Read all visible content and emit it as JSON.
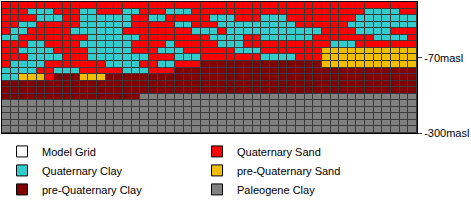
{
  "chart_data": {
    "type": "heatmap",
    "series": [
      {
        "name": "Model Grid",
        "color": "#ffffff"
      },
      {
        "name": "Quaternary Sand",
        "color": "#ff0000"
      },
      {
        "name": "Quaternary Clay",
        "color": "#33cccc"
      },
      {
        "name": "pre-Quaternary Sand",
        "color": "#f0c000"
      },
      {
        "name": "pre-Quaternary Clay",
        "color": "#800000"
      },
      {
        "name": "Paleogene Clay",
        "color": "#808080"
      }
    ],
    "x": [
      0.5,
      1.5,
      2.5,
      3.5,
      4.5,
      5.5,
      6.5,
      7.5,
      8.5,
      9.5,
      10.5,
      11.5,
      12.5,
      13.5,
      14.5,
      15.5,
      16.5,
      17.5,
      18.5,
      19.5,
      20.5,
      21.5,
      22.5,
      23.5,
      24.5,
      25.5,
      26.5,
      27.5,
      28.5,
      29.5,
      30.5,
      31.5,
      32.5,
      33.5,
      34.5,
      35.5,
      36.5,
      37.5,
      38.5,
      39.5,
      40.5,
      41.5,
      42.5,
      43.5,
      44.5,
      45.5,
      46.5,
      47.5
    ],
    "y": [
      90,
      70,
      50,
      30,
      10,
      -10,
      -30,
      -50,
      -70,
      -90,
      -110,
      -130,
      -150,
      -170,
      -190,
      -210,
      -230,
      -250,
      -270,
      -290
    ],
    "cells": [
      [
        1,
        1,
        1,
        1,
        1,
        1,
        1,
        1,
        1,
        1,
        1,
        1,
        1,
        1,
        1,
        1,
        1,
        1,
        1,
        1,
        1,
        1,
        1,
        1,
        1,
        1,
        1,
        1,
        1,
        1,
        1,
        1,
        1,
        1,
        1,
        1,
        1,
        1,
        1,
        1,
        1,
        1,
        1,
        1,
        1,
        1,
        1,
        1
      ],
      [
        1,
        1,
        1,
        2,
        2,
        2,
        1,
        1,
        1,
        2,
        2,
        1,
        1,
        1,
        2,
        2,
        1,
        1,
        1,
        2,
        2,
        2,
        1,
        1,
        1,
        1,
        1,
        1,
        1,
        1,
        1,
        1,
        1,
        1,
        1,
        1,
        1,
        1,
        1,
        1,
        1,
        1,
        2,
        2,
        2,
        2,
        1,
        1
      ],
      [
        1,
        1,
        1,
        1,
        2,
        2,
        2,
        1,
        1,
        2,
        2,
        2,
        2,
        2,
        2,
        1,
        1,
        2,
        2,
        1,
        1,
        1,
        1,
        1,
        2,
        2,
        2,
        1,
        1,
        1,
        2,
        2,
        2,
        1,
        1,
        1,
        1,
        1,
        1,
        1,
        1,
        2,
        2,
        2,
        2,
        2,
        2,
        2
      ],
      [
        1,
        1,
        2,
        2,
        1,
        1,
        1,
        1,
        1,
        2,
        2,
        2,
        2,
        2,
        2,
        1,
        1,
        1,
        1,
        1,
        2,
        2,
        1,
        1,
        1,
        2,
        2,
        2,
        2,
        2,
        2,
        2,
        2,
        2,
        1,
        1,
        1,
        1,
        1,
        1,
        2,
        2,
        2,
        2,
        2,
        2,
        2,
        2
      ],
      [
        1,
        2,
        2,
        1,
        1,
        1,
        1,
        1,
        2,
        2,
        2,
        2,
        2,
        2,
        1,
        1,
        1,
        1,
        1,
        1,
        1,
        1,
        2,
        2,
        2,
        1,
        2,
        2,
        2,
        2,
        2,
        2,
        2,
        2,
        2,
        2,
        2,
        1,
        1,
        1,
        1,
        2,
        2,
        2,
        2,
        1,
        1,
        1
      ],
      [
        2,
        2,
        1,
        1,
        1,
        1,
        1,
        1,
        1,
        1,
        2,
        2,
        2,
        2,
        2,
        2,
        1,
        1,
        1,
        1,
        1,
        1,
        1,
        1,
        2,
        2,
        2,
        2,
        1,
        1,
        2,
        2,
        2,
        2,
        2,
        2,
        1,
        1,
        1,
        1,
        1,
        1,
        1,
        2,
        2,
        2,
        2,
        1
      ],
      [
        1,
        1,
        1,
        2,
        2,
        1,
        1,
        1,
        1,
        2,
        2,
        2,
        2,
        2,
        2,
        1,
        1,
        1,
        1,
        2,
        1,
        1,
        1,
        1,
        1,
        2,
        2,
        2,
        1,
        1,
        1,
        1,
        1,
        1,
        1,
        1,
        1,
        1,
        2,
        2,
        2,
        1,
        1,
        1,
        1,
        1,
        1,
        1
      ],
      [
        1,
        1,
        2,
        2,
        2,
        2,
        1,
        1,
        1,
        1,
        2,
        2,
        2,
        2,
        2,
        1,
        1,
        1,
        2,
        2,
        2,
        1,
        1,
        1,
        1,
        1,
        1,
        2,
        2,
        2,
        1,
        1,
        1,
        1,
        1,
        1,
        1,
        3,
        3,
        3,
        3,
        3,
        3,
        3,
        3,
        3,
        3,
        3
      ],
      [
        1,
        1,
        1,
        2,
        2,
        2,
        2,
        1,
        1,
        1,
        2,
        2,
        2,
        2,
        2,
        2,
        2,
        1,
        1,
        1,
        2,
        2,
        2,
        1,
        1,
        1,
        1,
        1,
        1,
        1,
        2,
        2,
        2,
        2,
        1,
        1,
        1,
        3,
        3,
        3,
        3,
        3,
        3,
        3,
        3,
        3,
        3,
        3
      ],
      [
        1,
        2,
        2,
        2,
        2,
        1,
        1,
        1,
        1,
        1,
        1,
        1,
        2,
        2,
        2,
        2,
        1,
        1,
        2,
        2,
        1,
        1,
        1,
        4,
        4,
        4,
        4,
        4,
        4,
        4,
        4,
        4,
        4,
        4,
        4,
        4,
        4,
        3,
        3,
        3,
        3,
        3,
        3,
        3,
        3,
        3,
        3,
        3
      ],
      [
        2,
        2,
        2,
        2,
        1,
        1,
        2,
        2,
        2,
        1,
        1,
        1,
        1,
        1,
        2,
        2,
        2,
        1,
        1,
        1,
        4,
        4,
        4,
        4,
        4,
        4,
        4,
        4,
        4,
        4,
        4,
        4,
        4,
        4,
        4,
        4,
        4,
        4,
        4,
        4,
        4,
        4,
        4,
        4,
        4,
        4,
        4,
        4
      ],
      [
        2,
        2,
        3,
        3,
        3,
        1,
        4,
        4,
        4,
        3,
        3,
        3,
        4,
        4,
        4,
        4,
        4,
        4,
        4,
        4,
        4,
        4,
        4,
        4,
        4,
        4,
        4,
        4,
        4,
        4,
        4,
        4,
        4,
        4,
        4,
        4,
        4,
        4,
        4,
        4,
        4,
        4,
        4,
        4,
        4,
        4,
        4,
        4
      ],
      [
        4,
        4,
        4,
        4,
        4,
        4,
        4,
        4,
        4,
        4,
        4,
        4,
        4,
        4,
        4,
        4,
        4,
        4,
        4,
        4,
        4,
        4,
        4,
        4,
        4,
        4,
        4,
        4,
        4,
        4,
        4,
        4,
        4,
        4,
        4,
        4,
        4,
        4,
        4,
        4,
        4,
        4,
        4,
        4,
        4,
        4,
        4,
        4
      ],
      [
        4,
        4,
        4,
        4,
        4,
        4,
        4,
        4,
        4,
        4,
        4,
        4,
        4,
        4,
        4,
        4,
        4,
        4,
        4,
        4,
        4,
        4,
        4,
        4,
        4,
        4,
        4,
        4,
        4,
        4,
        4,
        4,
        4,
        4,
        4,
        4,
        4,
        4,
        4,
        4,
        4,
        4,
        4,
        4,
        4,
        4,
        4,
        4
      ],
      [
        4,
        4,
        4,
        4,
        4,
        4,
        4,
        4,
        4,
        4,
        4,
        4,
        4,
        4,
        4,
        4,
        5,
        5,
        5,
        5,
        5,
        5,
        5,
        5,
        5,
        5,
        5,
        5,
        5,
        5,
        5,
        5,
        5,
        5,
        5,
        5,
        5,
        5,
        5,
        5,
        5,
        5,
        5,
        5,
        5,
        5,
        5,
        5
      ],
      [
        5,
        5,
        5,
        5,
        5,
        5,
        5,
        5,
        5,
        5,
        5,
        5,
        5,
        5,
        5,
        5,
        5,
        5,
        5,
        5,
        5,
        5,
        5,
        5,
        5,
        5,
        5,
        5,
        5,
        5,
        5,
        5,
        5,
        5,
        5,
        5,
        5,
        5,
        5,
        5,
        5,
        5,
        5,
        5,
        5,
        5,
        5,
        5
      ],
      [
        5,
        5,
        5,
        5,
        5,
        5,
        5,
        5,
        5,
        5,
        5,
        5,
        5,
        5,
        5,
        5,
        5,
        5,
        5,
        5,
        5,
        5,
        5,
        5,
        5,
        5,
        5,
        5,
        5,
        5,
        5,
        5,
        5,
        5,
        5,
        5,
        5,
        5,
        5,
        5,
        5,
        5,
        5,
        5,
        5,
        5,
        5,
        5
      ],
      [
        5,
        5,
        5,
        5,
        5,
        5,
        5,
        5,
        5,
        5,
        5,
        5,
        5,
        5,
        5,
        5,
        5,
        5,
        5,
        5,
        5,
        5,
        5,
        5,
        5,
        5,
        5,
        5,
        5,
        5,
        5,
        5,
        5,
        5,
        5,
        5,
        5,
        5,
        5,
        5,
        5,
        5,
        5,
        5,
        5,
        5,
        5,
        5
      ],
      [
        5,
        5,
        5,
        5,
        5,
        5,
        5,
        5,
        5,
        5,
        5,
        5,
        5,
        5,
        5,
        5,
        5,
        5,
        5,
        5,
        5,
        5,
        5,
        5,
        5,
        5,
        5,
        5,
        5,
        5,
        5,
        5,
        5,
        5,
        5,
        5,
        5,
        5,
        5,
        5,
        5,
        5,
        5,
        5,
        5,
        5,
        5,
        5
      ],
      [
        5,
        5,
        5,
        5,
        5,
        5,
        5,
        5,
        5,
        5,
        5,
        5,
        5,
        5,
        5,
        5,
        5,
        5,
        5,
        5,
        5,
        5,
        5,
        5,
        5,
        5,
        5,
        5,
        5,
        5,
        5,
        5,
        5,
        5,
        5,
        5,
        5,
        5,
        5,
        5,
        5,
        5,
        5,
        5,
        5,
        5,
        5,
        5
      ]
    ],
    "xlim": [
      0,
      48
    ],
    "ylim": [
      -300,
      100
    ],
    "yticks": [
      {
        "value": -70,
        "label": "-70masl"
      },
      {
        "value": -300,
        "label": "-300masl"
      }
    ],
    "tick_labels": "y",
    "legend": "bottom"
  }
}
